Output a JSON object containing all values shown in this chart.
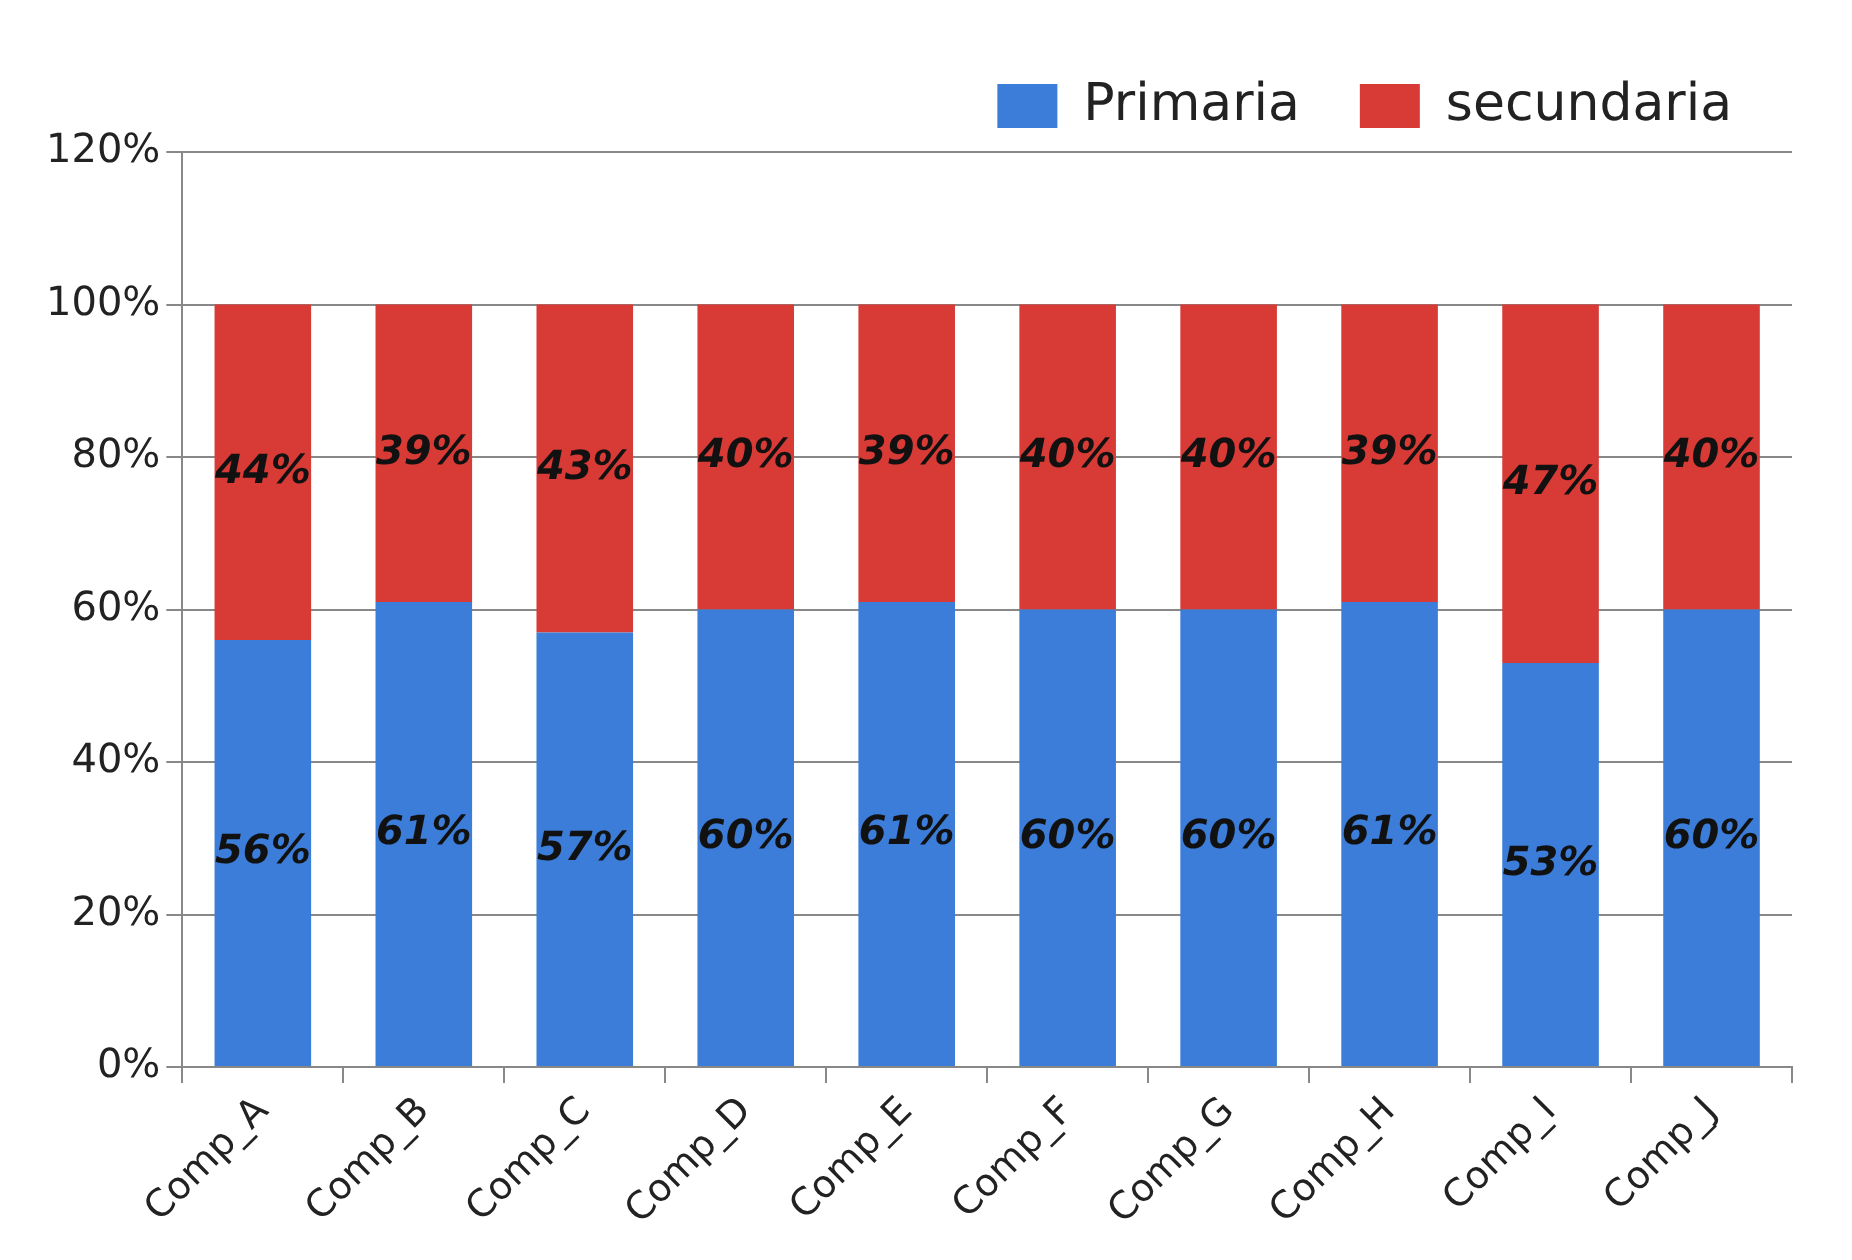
{
  "chart_data": {
    "type": "bar",
    "stacked": true,
    "categories": [
      "Comp_A",
      "Comp_B",
      "Comp_C",
      "Comp_D",
      "Comp_E",
      "Comp_F",
      "Comp_G",
      "Comp_H",
      "Comp_I",
      "Comp_J"
    ],
    "series": [
      {
        "name": "Primaria",
        "color": "#3b7dd8",
        "values": [
          56,
          61,
          57,
          60,
          61,
          60,
          60,
          61,
          53,
          60
        ],
        "value_labels": [
          "56%",
          "61%",
          "57%",
          "60%",
          "61%",
          "60%",
          "60%",
          "61%",
          "53%",
          "60%"
        ]
      },
      {
        "name": "secundaria",
        "color": "#d83b36",
        "values": [
          44,
          39,
          43,
          40,
          39,
          40,
          40,
          39,
          47,
          40
        ],
        "value_labels": [
          "44%",
          "39%",
          "43%",
          "40%",
          "39%",
          "40%",
          "40%",
          "39%",
          "47%",
          "40%"
        ]
      }
    ],
    "ylim": [
      0,
      120
    ],
    "yticks": [
      {
        "value": 0,
        "label": "0%"
      },
      {
        "value": 20,
        "label": "20%"
      },
      {
        "value": 40,
        "label": "40%"
      },
      {
        "value": 60,
        "label": "60%"
      },
      {
        "value": 80,
        "label": "80%"
      },
      {
        "value": 100,
        "label": "100%"
      },
      {
        "value": 120,
        "label": "120%"
      }
    ],
    "grid": "y",
    "legend": "top right"
  }
}
